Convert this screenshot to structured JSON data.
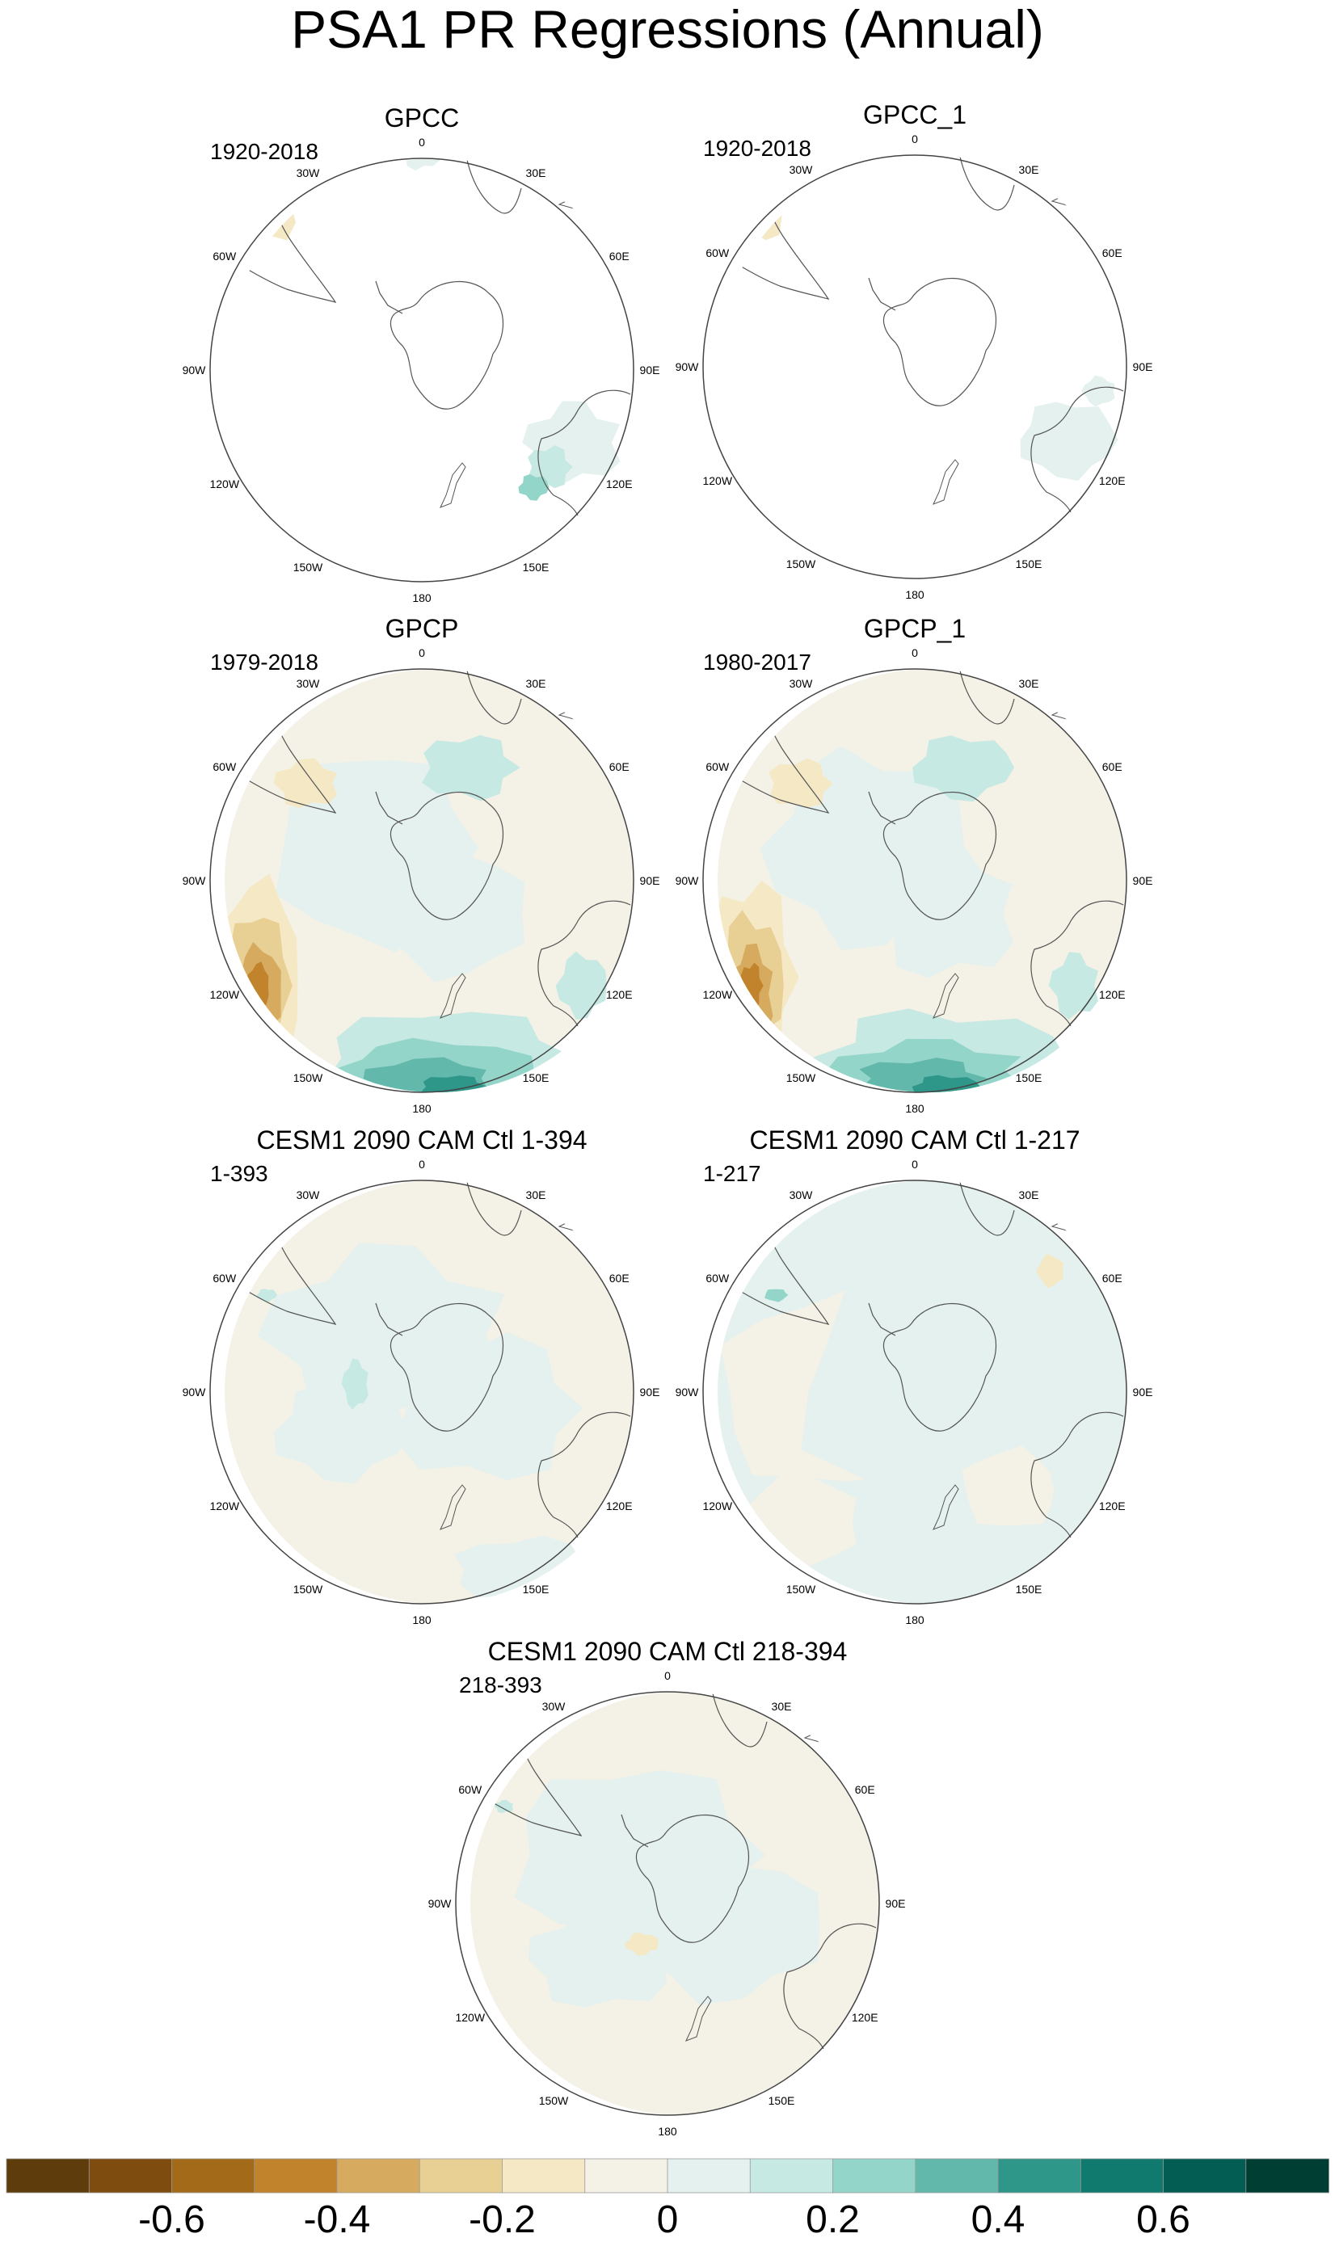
{
  "title": "PSA1 PR Regressions (Annual)",
  "panels": [
    {
      "name": "GPCC",
      "title": "GPCC",
      "period": "1920-2018"
    },
    {
      "name": "GPCC_1",
      "title": "GPCC_1",
      "period": "1920-2018"
    },
    {
      "name": "GPCP",
      "title": "GPCP",
      "period": "1979-2018"
    },
    {
      "name": "GPCP_1",
      "title": "GPCP_1",
      "period": "1980-2017"
    },
    {
      "name": "CESM1-1-394",
      "title": "CESM1 2090 CAM Ctl 1-394",
      "period": "1-393"
    },
    {
      "name": "CESM1-1-217",
      "title": "CESM1 2090 CAM Ctl 1-217",
      "period": "1-217"
    },
    {
      "name": "CESM1-218-394",
      "title": "CESM1 2090 CAM Ctl 218-394",
      "period": "218-393"
    }
  ],
  "longitude_labels": [
    "0",
    "30E",
    "60E",
    "90E",
    "120E",
    "150E",
    "180",
    "150W",
    "120W",
    "90W",
    "60W",
    "30W"
  ],
  "colorbar": {
    "colors": [
      "#5e3c0b",
      "#7f4c0f",
      "#a36a1a",
      "#c1842d",
      "#d6ab60",
      "#e8cf94",
      "#f5e8c5",
      "#f4f1e6",
      "#e4f1ef",
      "#c6e9e3",
      "#94d5c9",
      "#62b8aa",
      "#2f968a",
      "#107a6e",
      "#035d52",
      "#003d33"
    ],
    "tick_labels": [
      "-0.6",
      "-0.4",
      "-0.2",
      "0",
      "0.2",
      "0.4",
      "0.6"
    ]
  }
}
